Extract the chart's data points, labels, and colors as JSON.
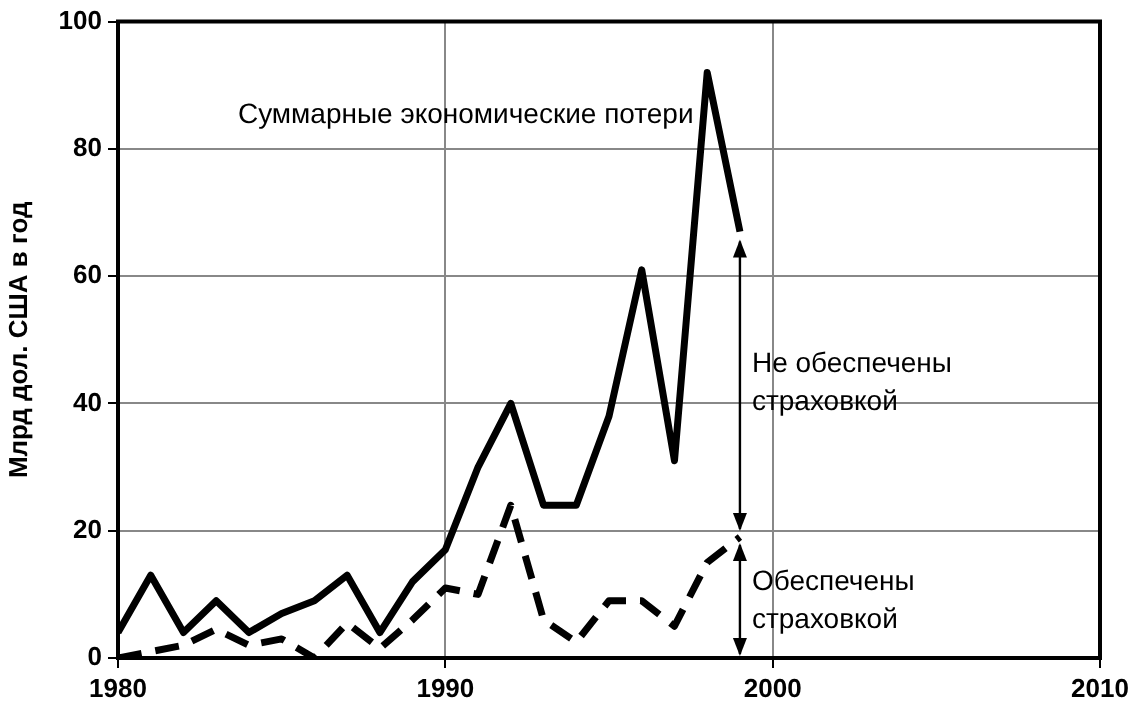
{
  "chart_data": {
    "type": "line",
    "ylabel": "Млрд дол. США в год",
    "x": [
      1980,
      1981,
      1982,
      1983,
      1984,
      1985,
      1986,
      1987,
      1988,
      1989,
      1990,
      1991,
      1992,
      1993,
      1994,
      1995,
      1996,
      1997,
      1998,
      1999
    ],
    "series": [
      {
        "name": "Суммарные экономические потери",
        "color": "#000000",
        "line_style": "solid",
        "values": [
          4,
          13,
          4,
          9,
          4,
          7,
          9,
          13,
          4,
          12,
          17,
          30,
          40,
          24,
          24,
          38,
          61,
          31,
          92,
          67
        ]
      },
      {
        "name": "Обеспечены страховкой",
        "color": "#000000",
        "line_style": "dashed",
        "values": [
          0,
          1,
          2,
          4.5,
          2,
          3,
          0,
          5.5,
          1.5,
          6,
          11,
          10,
          24,
          6,
          2.5,
          9,
          9,
          5,
          15,
          19
        ]
      }
    ],
    "annotations": [
      "Не обеспечены страховкой"
    ],
    "xlim": [
      1980,
      2010
    ],
    "xticks": [
      1980,
      1990,
      2000,
      2010
    ],
    "ylim": [
      0,
      100
    ],
    "yticks": [
      0,
      20,
      40,
      60,
      80,
      100
    ],
    "grid": true,
    "marker": "none"
  }
}
